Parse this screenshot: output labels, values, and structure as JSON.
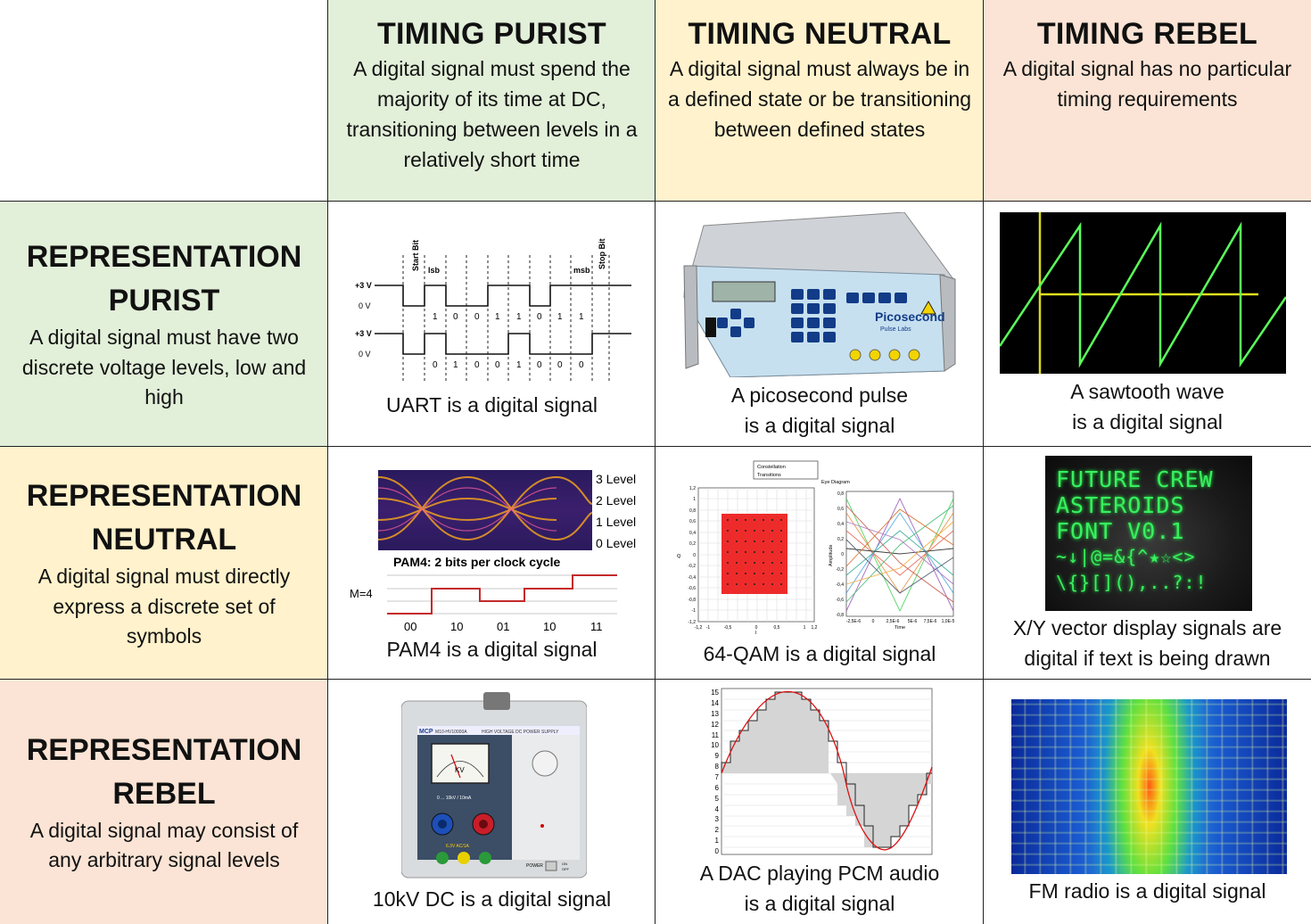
{
  "columns": [
    {
      "title": "TIMING PURIST",
      "description": "A digital signal must spend the majority of its time at DC, transitioning between levels in a relatively short time"
    },
    {
      "title": "TIMING NEUTRAL",
      "description": "A digital signal must always be in a defined state or be transitioning between defined states"
    },
    {
      "title": "TIMING REBEL",
      "description": "A digital signal has no particular timing requirements"
    }
  ],
  "rows": [
    {
      "title": "REPRESENTATION\nPURIST",
      "description": "A digital signal must have two discrete voltage levels, low and high"
    },
    {
      "title": "REPRESENTATION\nNEUTRAL",
      "description": "A digital signal must directly express a discrete set of symbols"
    },
    {
      "title": "REPRESENTATION\nREBEL",
      "description": "A digital signal may consist of any arbitrary signal levels"
    }
  ],
  "cells": {
    "uart": {
      "caption": "UART is a digital signal",
      "labels": {
        "start_bit": "Start Bit",
        "lsb": "lsb",
        "msb": "msb",
        "stop_bit": "Stop Bit",
        "v3": "+3 V",
        "v0": "0 V"
      },
      "bits_top": [
        "1",
        "0",
        "0",
        "1",
        "1",
        "0",
        "1",
        "1"
      ],
      "bits_bottom": [
        "0",
        "1",
        "0",
        "0",
        "1",
        "0",
        "0",
        "0"
      ]
    },
    "picosecond": {
      "caption": "A picosecond pulse\nis a digital signal",
      "brand": "Picosecond",
      "brand_sub": "Pulse Labs"
    },
    "sawtooth": {
      "caption": "A sawtooth wave\nis a digital signal"
    },
    "pam4": {
      "caption": "PAM4 is a digital signal",
      "levels": [
        "3 Level",
        "2 Level",
        "1 Level",
        "0 Level"
      ],
      "subtitle": "PAM4: 2 bits per clock cycle",
      "m_label": "M=4",
      "symbols": [
        "00",
        "10",
        "01",
        "10",
        "11"
      ]
    },
    "qam": {
      "caption": "64-QAM is a digital signal",
      "legend": [
        "Constellation",
        "Transitions"
      ],
      "eye_title": "Eye Diagram",
      "y_ticks": [
        "1,2",
        "1",
        "0,8",
        "0,6",
        "0,4",
        "0,2",
        "0",
        "-0,2",
        "-0,4",
        "-0,6",
        "-0,8",
        "-1",
        "-1,2"
      ],
      "x_ticks": [
        "-1,2",
        "-1",
        "-0,5",
        "0",
        "0,5",
        "1",
        "1,2"
      ],
      "eye_y_ticks": [
        "0,8",
        "0,6",
        "0,4",
        "0,2",
        "0",
        "-0,2",
        "-0,4",
        "-0,6",
        "-0,8"
      ],
      "eye_x_ticks": [
        "-2,5E-6",
        "0",
        "2,5E-6",
        "5E-6",
        "7,5E-6",
        "1,0E-5"
      ],
      "q_label": "Q",
      "i_label": "I",
      "amp_label": "Amplitude",
      "time_label": "Time"
    },
    "xy": {
      "caption": "X/Y vector display signals are\ndigital if text is being drawn",
      "screen_lines": [
        "FUTURE CREW",
        "ASTEROIDS",
        "FONT V0.1",
        "~↓|@=&{^★☆<>",
        "\\{}[](),..?:!"
      ]
    },
    "hv": {
      "caption": "10kV DC is a digital signal",
      "brand": "MCP",
      "model": "M10-HV10000A",
      "panel_title": "HIGH VOLTAGE DC POWER SUPPLY",
      "meter_unit": "KV",
      "range": "0 ... 10kV / 10mA",
      "aux": "6.3V AC/1A",
      "power": "POWER",
      "on": "ON",
      "off": "OFF"
    },
    "dac": {
      "caption": "A DAC playing PCM audio\nis a digital signal",
      "y_ticks": [
        "15",
        "14",
        "13",
        "12",
        "11",
        "10",
        "9",
        "8",
        "7",
        "6",
        "5",
        "4",
        "3",
        "2",
        "1",
        "0"
      ]
    },
    "fm": {
      "caption": "FM radio is a digital signal"
    }
  },
  "colors": {
    "green": "#e2efd9",
    "yellow": "#fff2cc",
    "peach": "#fbe4d5",
    "scope_green": "#4cff4c",
    "scope_yellow": "#ffff00",
    "dac_red": "#dd1111"
  }
}
